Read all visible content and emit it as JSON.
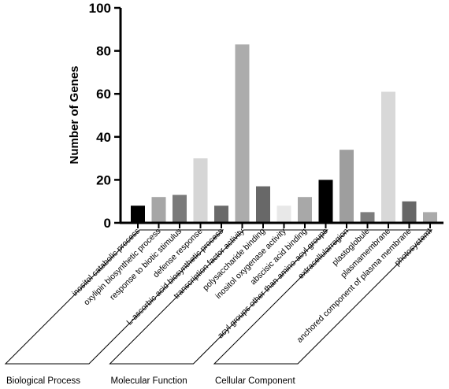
{
  "chart_data": {
    "type": "bar",
    "ylabel": "Number of Genes",
    "xlabel": "",
    "title": "",
    "ylim": [
      0,
      100
    ],
    "yticks": [
      0,
      20,
      40,
      60,
      80,
      100
    ],
    "grid": false,
    "legend": "none",
    "categories": [
      "inositol catabolic process",
      "oxylipin biosynthetic process",
      "response to biotic stimulus",
      "defense response",
      "L-ascorbic acid biosynthetic process",
      "transcription factor activity",
      "polysaccharide binding",
      "inositol oxygenase activity",
      "abscisic acid binding",
      "acyl groups other than amino-acyl groups",
      "extracellularregion",
      "plastoglobule",
      "plasmamembrane",
      "anchored component of plasma membrane",
      "photosystemI"
    ],
    "values": [
      8,
      12,
      13,
      30,
      8,
      83,
      17,
      8,
      12,
      20,
      34,
      5,
      61,
      10,
      5
    ],
    "colors": [
      "#000000",
      "#a6a6a6",
      "#7a7a7a",
      "#d6d6d6",
      "#6a6a6a",
      "#acacac",
      "#686868",
      "#e8e8e8",
      "#a8a8a8",
      "#000000",
      "#9e9e9e",
      "#7c7c7c",
      "#d8d8d8",
      "#676767",
      "#aaaaaa"
    ],
    "groups": [
      {
        "name": "Biological Process",
        "range": [
          0,
          4
        ]
      },
      {
        "name": "Molecular Function",
        "range": [
          5,
          9
        ]
      },
      {
        "name": "Cellular Component",
        "range": [
          10,
          14
        ]
      }
    ]
  }
}
